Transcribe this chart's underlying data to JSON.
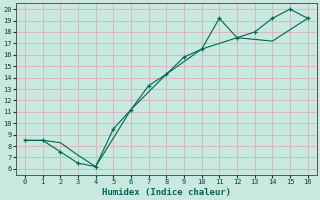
{
  "xlabel": "Humidex (Indice chaleur)",
  "bg_color": "#c8e8e0",
  "grid_color": "#d8b8b8",
  "line_color": "#006655",
  "xlim": [
    -0.5,
    16.5
  ],
  "ylim": [
    5.5,
    20.5
  ],
  "xticks": [
    0,
    1,
    2,
    3,
    4,
    5,
    6,
    7,
    8,
    9,
    10,
    11,
    12,
    13,
    14,
    15,
    16
  ],
  "yticks": [
    6,
    7,
    8,
    9,
    10,
    11,
    12,
    13,
    14,
    15,
    16,
    17,
    18,
    19,
    20
  ],
  "line1_x": [
    0,
    1,
    2,
    3,
    4,
    5,
    6,
    7,
    8,
    9,
    10,
    11,
    12,
    13,
    14,
    15,
    16
  ],
  "line1_y": [
    8.5,
    8.5,
    7.5,
    6.5,
    6.2,
    9.5,
    11.2,
    13.3,
    14.3,
    15.8,
    16.5,
    19.2,
    17.5,
    18.0,
    19.2,
    20.0,
    19.2
  ],
  "line2_x": [
    0,
    1,
    2,
    3,
    4,
    6,
    8,
    10,
    12,
    14,
    16
  ],
  "line2_y": [
    8.5,
    8.5,
    8.3,
    7.2,
    6.2,
    11.2,
    14.3,
    16.5,
    17.5,
    17.2,
    19.2
  ]
}
